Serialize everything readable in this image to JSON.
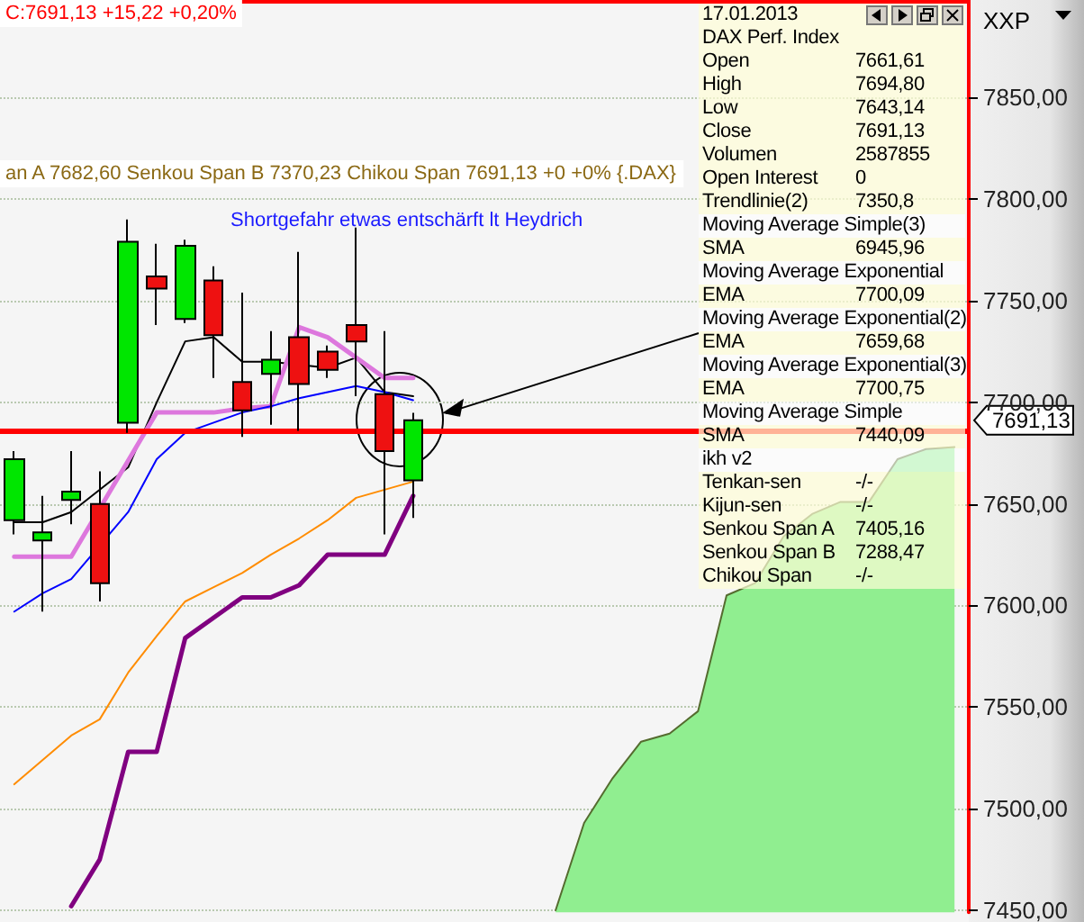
{
  "chart_data": [
    {
      "type": "candlestick",
      "title": "C:7691,13 +15,22 +0,20%",
      "subtitle": "an A 7682,60 Senkou Span B 7370,23 Chikou Span 7691,13 +0 +0% {.DAX}",
      "ylabel": "XXP",
      "categories": [
        null,
        null,
        null,
        null,
        null,
        null,
        null,
        null,
        null,
        null,
        null,
        null,
        null,
        null,
        null,
        null,
        null,
        null,
        null,
        null,
        null,
        null,
        null,
        null,
        null,
        null,
        null,
        null,
        null,
        null,
        null,
        null,
        null,
        null
      ],
      "ohlc": [
        [
          7642,
          7676,
          7635,
          7672
        ],
        [
          7632,
          7654,
          7597,
          7636
        ],
        [
          7652,
          7676,
          7640,
          7656
        ],
        [
          7650,
          7666,
          7602,
          7611
        ],
        [
          7690,
          7790,
          7685,
          7779
        ],
        [
          7762,
          7778,
          7738,
          7756
        ],
        [
          7741,
          7780,
          7739,
          7777
        ],
        [
          7760,
          7767,
          7712,
          7733
        ],
        [
          7710,
          7754,
          7683,
          7696
        ],
        [
          7714,
          7735,
          7689,
          7721
        ],
        [
          7732,
          7774,
          7686,
          7709
        ],
        [
          7725,
          7728,
          7712,
          7716
        ],
        [
          7738,
          7786,
          7703,
          7730
        ],
        [
          7704,
          7735,
          7635,
          7676
        ],
        [
          7661.61,
          7694.8,
          7643.14,
          7691.13
        ],
        null,
        null,
        null,
        null,
        null,
        null,
        null,
        null,
        null,
        null,
        null,
        null,
        null,
        null,
        null,
        null,
        null,
        null,
        null
      ],
      "colors": [
        "#00e600",
        "#00e600",
        "#00e600",
        "#ee1111",
        "#00e600",
        "#ee1111",
        "#00e600",
        "#ee1111",
        "#ee1111",
        "#00e600",
        "#ee1111",
        "#ee1111",
        "#ee1111",
        "#ee1111",
        "#00e600",
        null,
        null,
        null,
        null,
        null,
        null,
        null,
        null,
        null,
        null,
        null,
        null,
        null,
        null,
        null,
        null,
        null,
        null,
        null
      ],
      "series": [
        {
          "type": "line",
          "color": "#000000",
          "values": [
            7641,
            7641,
            7646,
            null,
            7668,
            7700,
            7730,
            7732,
            7720,
            7720,
            null,
            7717,
            7722,
            7705,
            7703,
            null,
            null,
            null,
            null,
            null,
            null,
            null,
            null,
            null,
            null,
            null,
            null,
            null,
            null,
            null,
            null,
            null,
            null,
            null
          ]
        },
        {
          "type": "line",
          "color": "#dd77dd",
          "values": [
            7624,
            7624,
            7624,
            null,
            null,
            7695,
            7695,
            7695,
            7697,
            7698,
            7737,
            7732,
            null,
            7712,
            7712,
            null,
            null,
            null,
            null,
            null,
            null,
            null,
            null,
            null,
            null,
            null,
            null,
            null,
            null,
            null,
            null,
            null,
            null,
            null
          ]
        },
        {
          "type": "line",
          "color": "#0000ff",
          "values": [
            7597,
            7606,
            7613,
            null,
            7646,
            7672,
            7685,
            7690,
            7695,
            7698,
            7702,
            7705,
            7708,
            7705,
            7701,
            null,
            null,
            null,
            null,
            null,
            null,
            null,
            null,
            null,
            null,
            null,
            null,
            null,
            null,
            null,
            null,
            null,
            null,
            null
          ]
        },
        {
          "type": "line",
          "color": "#ff8c00",
          "values": [
            7512,
            7524,
            7536,
            7544,
            7567,
            7585,
            7602,
            7609,
            7616,
            7625,
            7633,
            7642,
            7653,
            7657,
            7661,
            null,
            null,
            null,
            null,
            null,
            null,
            null,
            null,
            null,
            null,
            null,
            null,
            null,
            null,
            null,
            null,
            null,
            null,
            null
          ]
        },
        {
          "type": "line",
          "color": "#800080",
          "values": [
            null,
            null,
            7452,
            7475,
            7528,
            7528,
            7584,
            7594,
            7604,
            7604,
            7610,
            7625,
            7625,
            7625,
            7654,
            null,
            null,
            null,
            null,
            null,
            null,
            null,
            null,
            null,
            null,
            null,
            null,
            null,
            null,
            null,
            null,
            null,
            null,
            null
          ]
        },
        {
          "type": "area",
          "color": "#90ee90",
          "values": [
            null,
            null,
            null,
            null,
            null,
            null,
            null,
            null,
            null,
            null,
            null,
            null,
            null,
            null,
            null,
            null,
            null,
            null,
            null,
            7450,
            7493,
            7515,
            7533,
            7537,
            7548,
            7605,
            7611,
            7634,
            7645,
            7651,
            7651,
            7672,
            7677,
            7678
          ]
        }
      ],
      "ylim": [
        7449,
        7898
      ],
      "yticks": [
        {
          "value": 7450,
          "label": "7450,00"
        },
        {
          "value": 7500,
          "label": "7500,00"
        },
        {
          "value": 7550,
          "label": "7550,00"
        },
        {
          "value": 7600,
          "label": "7600,00"
        },
        {
          "value": 7650,
          "label": "7650,00"
        },
        {
          "value": 7700,
          "label": "7700,00"
        },
        {
          "value": 7750,
          "label": "7750,00"
        },
        {
          "value": 7800,
          "label": "7800,00"
        },
        {
          "value": 7850,
          "label": "7850,00"
        }
      ],
      "ref_lines": [
        {
          "axis": "y",
          "value": 7686,
          "color": "#ff0000"
        }
      ],
      "annotations": [
        "Shortgefahr etwas entschärft lt Heydrich",
        "7691,13"
      ],
      "grid": "y",
      "marker": "none",
      "line_style": "solid",
      "tick_labels": "y"
    },
    {
      "type": "other",
      "title": "17.01.2013",
      "subtitle": "DAX Perf. Index",
      "categories": [
        "Open",
        "High",
        "Low",
        "Close",
        "Volumen",
        "Open Interest",
        "Trendlinie(2)",
        "Moving Average Simple(3)",
        "SMA",
        "Moving Average Exponential",
        "EMA",
        "Moving Average Exponential(2)",
        "EMA",
        "Moving Average Exponential(3)",
        "EMA",
        "Moving Average Simple",
        "SMA",
        "ikh v2",
        "Tenkan-sen",
        "Kijun-sen",
        "Senkou Span A",
        "Senkou Span B",
        "Chikou Span"
      ],
      "value_labels": [
        "7661,61",
        "7694,80",
        "7643,14",
        "7691,13",
        "2587855",
        "0",
        "7350,8",
        null,
        "6945,96",
        null,
        "7700,09",
        null,
        "7659,68",
        null,
        "7700,75",
        null,
        "7440,09",
        null,
        "-/-",
        "-/-",
        "7405,16",
        "7288,47",
        "-/-"
      ]
    }
  ]
}
